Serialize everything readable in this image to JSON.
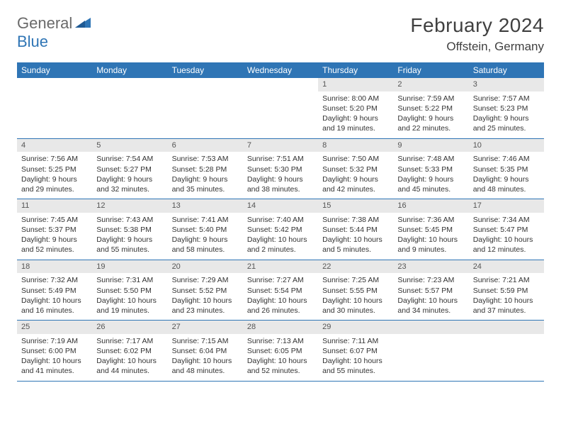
{
  "logo": {
    "general": "General",
    "blue": "Blue"
  },
  "title": "February 2024",
  "location": "Offstein, Germany",
  "colors": {
    "header_bg": "#2f75b5",
    "header_text": "#ffffff",
    "daynum_bg": "#e8e8e8",
    "text": "#333333",
    "logo_gray": "#6a6a6a",
    "logo_blue": "#2f75b5",
    "border": "#2f75b5",
    "page_bg": "#ffffff"
  },
  "dayheads": [
    "Sunday",
    "Monday",
    "Tuesday",
    "Wednesday",
    "Thursday",
    "Friday",
    "Saturday"
  ],
  "weeks": [
    [
      {
        "n": "",
        "sr": "",
        "ss": "",
        "dl1": "",
        "dl2": ""
      },
      {
        "n": "",
        "sr": "",
        "ss": "",
        "dl1": "",
        "dl2": ""
      },
      {
        "n": "",
        "sr": "",
        "ss": "",
        "dl1": "",
        "dl2": ""
      },
      {
        "n": "",
        "sr": "",
        "ss": "",
        "dl1": "",
        "dl2": ""
      },
      {
        "n": "1",
        "sr": "Sunrise: 8:00 AM",
        "ss": "Sunset: 5:20 PM",
        "dl1": "Daylight: 9 hours",
        "dl2": "and 19 minutes."
      },
      {
        "n": "2",
        "sr": "Sunrise: 7:59 AM",
        "ss": "Sunset: 5:22 PM",
        "dl1": "Daylight: 9 hours",
        "dl2": "and 22 minutes."
      },
      {
        "n": "3",
        "sr": "Sunrise: 7:57 AM",
        "ss": "Sunset: 5:23 PM",
        "dl1": "Daylight: 9 hours",
        "dl2": "and 25 minutes."
      }
    ],
    [
      {
        "n": "4",
        "sr": "Sunrise: 7:56 AM",
        "ss": "Sunset: 5:25 PM",
        "dl1": "Daylight: 9 hours",
        "dl2": "and 29 minutes."
      },
      {
        "n": "5",
        "sr": "Sunrise: 7:54 AM",
        "ss": "Sunset: 5:27 PM",
        "dl1": "Daylight: 9 hours",
        "dl2": "and 32 minutes."
      },
      {
        "n": "6",
        "sr": "Sunrise: 7:53 AM",
        "ss": "Sunset: 5:28 PM",
        "dl1": "Daylight: 9 hours",
        "dl2": "and 35 minutes."
      },
      {
        "n": "7",
        "sr": "Sunrise: 7:51 AM",
        "ss": "Sunset: 5:30 PM",
        "dl1": "Daylight: 9 hours",
        "dl2": "and 38 minutes."
      },
      {
        "n": "8",
        "sr": "Sunrise: 7:50 AM",
        "ss": "Sunset: 5:32 PM",
        "dl1": "Daylight: 9 hours",
        "dl2": "and 42 minutes."
      },
      {
        "n": "9",
        "sr": "Sunrise: 7:48 AM",
        "ss": "Sunset: 5:33 PM",
        "dl1": "Daylight: 9 hours",
        "dl2": "and 45 minutes."
      },
      {
        "n": "10",
        "sr": "Sunrise: 7:46 AM",
        "ss": "Sunset: 5:35 PM",
        "dl1": "Daylight: 9 hours",
        "dl2": "and 48 minutes."
      }
    ],
    [
      {
        "n": "11",
        "sr": "Sunrise: 7:45 AM",
        "ss": "Sunset: 5:37 PM",
        "dl1": "Daylight: 9 hours",
        "dl2": "and 52 minutes."
      },
      {
        "n": "12",
        "sr": "Sunrise: 7:43 AM",
        "ss": "Sunset: 5:38 PM",
        "dl1": "Daylight: 9 hours",
        "dl2": "and 55 minutes."
      },
      {
        "n": "13",
        "sr": "Sunrise: 7:41 AM",
        "ss": "Sunset: 5:40 PM",
        "dl1": "Daylight: 9 hours",
        "dl2": "and 58 minutes."
      },
      {
        "n": "14",
        "sr": "Sunrise: 7:40 AM",
        "ss": "Sunset: 5:42 PM",
        "dl1": "Daylight: 10 hours",
        "dl2": "and 2 minutes."
      },
      {
        "n": "15",
        "sr": "Sunrise: 7:38 AM",
        "ss": "Sunset: 5:44 PM",
        "dl1": "Daylight: 10 hours",
        "dl2": "and 5 minutes."
      },
      {
        "n": "16",
        "sr": "Sunrise: 7:36 AM",
        "ss": "Sunset: 5:45 PM",
        "dl1": "Daylight: 10 hours",
        "dl2": "and 9 minutes."
      },
      {
        "n": "17",
        "sr": "Sunrise: 7:34 AM",
        "ss": "Sunset: 5:47 PM",
        "dl1": "Daylight: 10 hours",
        "dl2": "and 12 minutes."
      }
    ],
    [
      {
        "n": "18",
        "sr": "Sunrise: 7:32 AM",
        "ss": "Sunset: 5:49 PM",
        "dl1": "Daylight: 10 hours",
        "dl2": "and 16 minutes."
      },
      {
        "n": "19",
        "sr": "Sunrise: 7:31 AM",
        "ss": "Sunset: 5:50 PM",
        "dl1": "Daylight: 10 hours",
        "dl2": "and 19 minutes."
      },
      {
        "n": "20",
        "sr": "Sunrise: 7:29 AM",
        "ss": "Sunset: 5:52 PM",
        "dl1": "Daylight: 10 hours",
        "dl2": "and 23 minutes."
      },
      {
        "n": "21",
        "sr": "Sunrise: 7:27 AM",
        "ss": "Sunset: 5:54 PM",
        "dl1": "Daylight: 10 hours",
        "dl2": "and 26 minutes."
      },
      {
        "n": "22",
        "sr": "Sunrise: 7:25 AM",
        "ss": "Sunset: 5:55 PM",
        "dl1": "Daylight: 10 hours",
        "dl2": "and 30 minutes."
      },
      {
        "n": "23",
        "sr": "Sunrise: 7:23 AM",
        "ss": "Sunset: 5:57 PM",
        "dl1": "Daylight: 10 hours",
        "dl2": "and 34 minutes."
      },
      {
        "n": "24",
        "sr": "Sunrise: 7:21 AM",
        "ss": "Sunset: 5:59 PM",
        "dl1": "Daylight: 10 hours",
        "dl2": "and 37 minutes."
      }
    ],
    [
      {
        "n": "25",
        "sr": "Sunrise: 7:19 AM",
        "ss": "Sunset: 6:00 PM",
        "dl1": "Daylight: 10 hours",
        "dl2": "and 41 minutes."
      },
      {
        "n": "26",
        "sr": "Sunrise: 7:17 AM",
        "ss": "Sunset: 6:02 PM",
        "dl1": "Daylight: 10 hours",
        "dl2": "and 44 minutes."
      },
      {
        "n": "27",
        "sr": "Sunrise: 7:15 AM",
        "ss": "Sunset: 6:04 PM",
        "dl1": "Daylight: 10 hours",
        "dl2": "and 48 minutes."
      },
      {
        "n": "28",
        "sr": "Sunrise: 7:13 AM",
        "ss": "Sunset: 6:05 PM",
        "dl1": "Daylight: 10 hours",
        "dl2": "and 52 minutes."
      },
      {
        "n": "29",
        "sr": "Sunrise: 7:11 AM",
        "ss": "Sunset: 6:07 PM",
        "dl1": "Daylight: 10 hours",
        "dl2": "and 55 minutes."
      },
      {
        "n": "",
        "sr": "",
        "ss": "",
        "dl1": "",
        "dl2": ""
      },
      {
        "n": "",
        "sr": "",
        "ss": "",
        "dl1": "",
        "dl2": ""
      }
    ]
  ]
}
